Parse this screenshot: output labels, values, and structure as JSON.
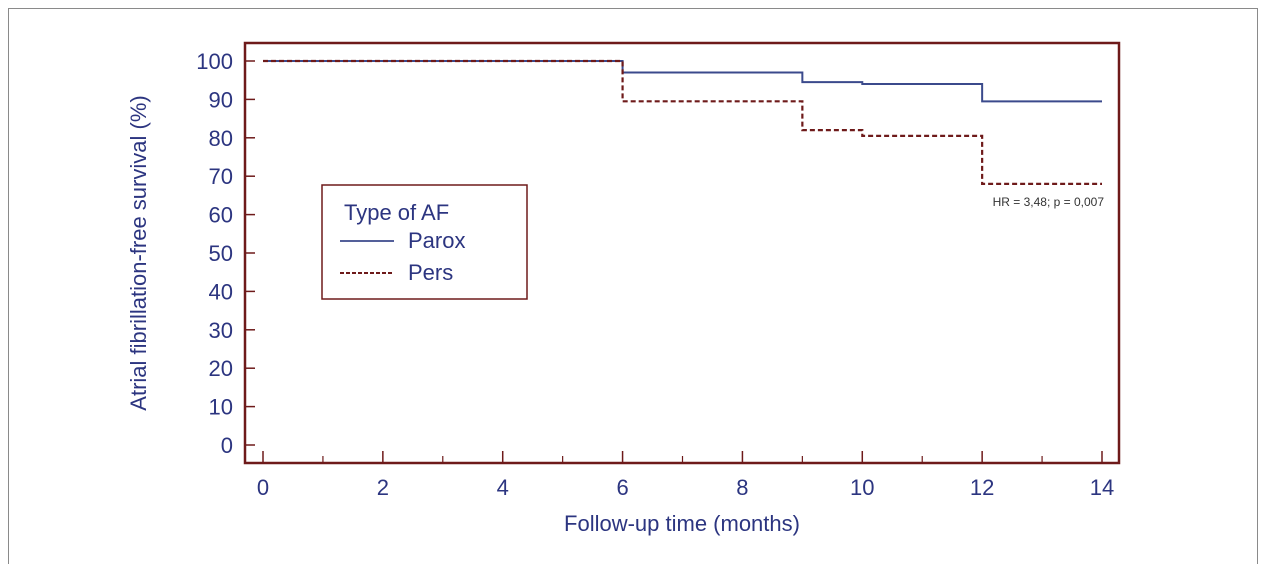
{
  "chart_data": {
    "type": "line",
    "step": true,
    "xlabel": "Follow-up time (months)",
    "ylabel": "Atrial fibrillation-free survival (%)",
    "xlim": [
      0,
      14
    ],
    "ylim": [
      0,
      100
    ],
    "xticks": [
      0,
      2,
      4,
      6,
      8,
      10,
      12,
      14
    ],
    "yticks": [
      0,
      10,
      20,
      30,
      40,
      50,
      60,
      70,
      80,
      90,
      100
    ],
    "grid": false,
    "legend": {
      "title": "Type of AF",
      "placement": "middle-left"
    },
    "annotation": "HR = 3,48; p = 0,007",
    "series": [
      {
        "name": "Parox",
        "style": "solid",
        "color": "#3b4a8c",
        "x": [
          0,
          6,
          9,
          10,
          12,
          14
        ],
        "y": [
          100,
          97,
          94.5,
          94,
          89.5,
          89.5
        ]
      },
      {
        "name": "Pers",
        "style": "dashed",
        "color": "#6e1a1a",
        "x": [
          0,
          6,
          9,
          10,
          12,
          14
        ],
        "y": [
          100,
          89.5,
          82,
          80.5,
          68,
          68
        ]
      }
    ]
  },
  "colors": {
    "axis": "#6e1a1a",
    "text": "#2c3580"
  }
}
